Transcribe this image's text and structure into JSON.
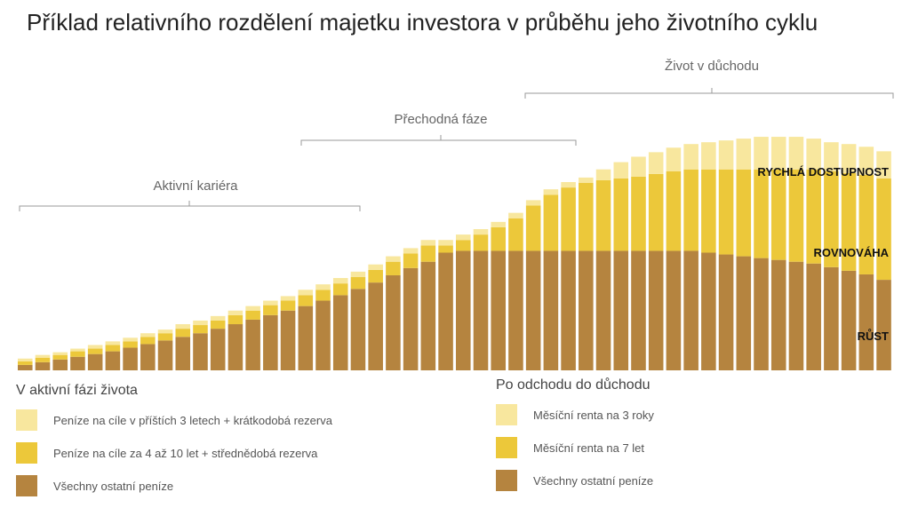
{
  "title": "Příklad relativního rozdělení majetku investora v průběhu jeho životního cyklu",
  "colors": {
    "rust": "#b5843f",
    "rovnovaha": "#ecc83a",
    "rychla": "#f8e79e",
    "bracket": "#9a9a9a"
  },
  "phases": {
    "aktivni": "Aktivní kariéra",
    "prechodna": "Přechodná fáze",
    "duchod": "Život v důchodu"
  },
  "layer_labels": {
    "rychla": "RYCHLÁ DOSTUPNOST",
    "rovnovaha": "ROVNOVÁHA",
    "rust": "RŮST"
  },
  "legend_left": {
    "heading": "V aktivní fázi života",
    "items": [
      {
        "label": "Peníze na cíle v příštích 3 letech + krátkodobá rezerva",
        "color": "#f8e79e"
      },
      {
        "label": "Peníze na cíle za 4 až 10 let + střednědobá rezerva",
        "color": "#ecc83a"
      },
      {
        "label": "Všechny ostatní peníze",
        "color": "#b5843f"
      }
    ]
  },
  "legend_right": {
    "heading": "Po odchodu do důchodu",
    "items": [
      {
        "label": "Měsíční renta na 3 roky",
        "color": "#f8e79e"
      },
      {
        "label": "Měsíční renta na 7 let",
        "color": "#ecc83a"
      },
      {
        "label": "Všechny ostatní peníze",
        "color": "#b5843f"
      }
    ]
  },
  "chart_data": {
    "type": "bar",
    "stacked": true,
    "categories": [
      1,
      2,
      3,
      4,
      5,
      6,
      7,
      8,
      9,
      10,
      11,
      12,
      13,
      14,
      15,
      16,
      17,
      18,
      19,
      20,
      21,
      22,
      23,
      24,
      25,
      26,
      27,
      28,
      29,
      30,
      31,
      32,
      33,
      34,
      35,
      36,
      37,
      38,
      39,
      40,
      41,
      42,
      43,
      44,
      45,
      46,
      47,
      48,
      49,
      50
    ],
    "ylim": [
      0,
      260
    ],
    "series": [
      {
        "name": "RŮST",
        "color": "#b5843f",
        "values": [
          6,
          9,
          12,
          15,
          18,
          21,
          25,
          29,
          33,
          37,
          41,
          46,
          51,
          56,
          61,
          66,
          71,
          77,
          83,
          90,
          97,
          105,
          113,
          120,
          130,
          132,
          132,
          132,
          132,
          132,
          132,
          132,
          132,
          132,
          132,
          132,
          132,
          132,
          132,
          130,
          128,
          126,
          124,
          122,
          120,
          118,
          114,
          110,
          106,
          100
        ]
      },
      {
        "name": "ROVNOVÁHA",
        "color": "#ecc83a",
        "values": [
          4,
          5,
          5,
          6,
          6,
          7,
          7,
          8,
          8,
          9,
          9,
          9,
          10,
          10,
          11,
          11,
          12,
          12,
          13,
          13,
          14,
          15,
          16,
          18,
          8,
          12,
          18,
          26,
          36,
          50,
          62,
          70,
          75,
          78,
          80,
          82,
          85,
          88,
          90,
          92,
          94,
          96,
          98,
          100,
          102,
          104,
          106,
          108,
          110,
          112
        ]
      },
      {
        "name": "RYCHLÁ DOSTUPNOST",
        "color": "#f8e79e",
        "values": [
          3,
          3,
          3,
          3,
          4,
          4,
          4,
          4,
          4,
          5,
          5,
          5,
          5,
          5,
          5,
          5,
          6,
          6,
          6,
          6,
          6,
          6,
          6,
          6,
          6,
          6,
          6,
          6,
          6,
          6,
          6,
          6,
          6,
          12,
          18,
          22,
          24,
          26,
          28,
          30,
          32,
          34,
          36,
          36,
          36,
          34,
          32,
          32,
          31,
          30
        ]
      }
    ]
  }
}
